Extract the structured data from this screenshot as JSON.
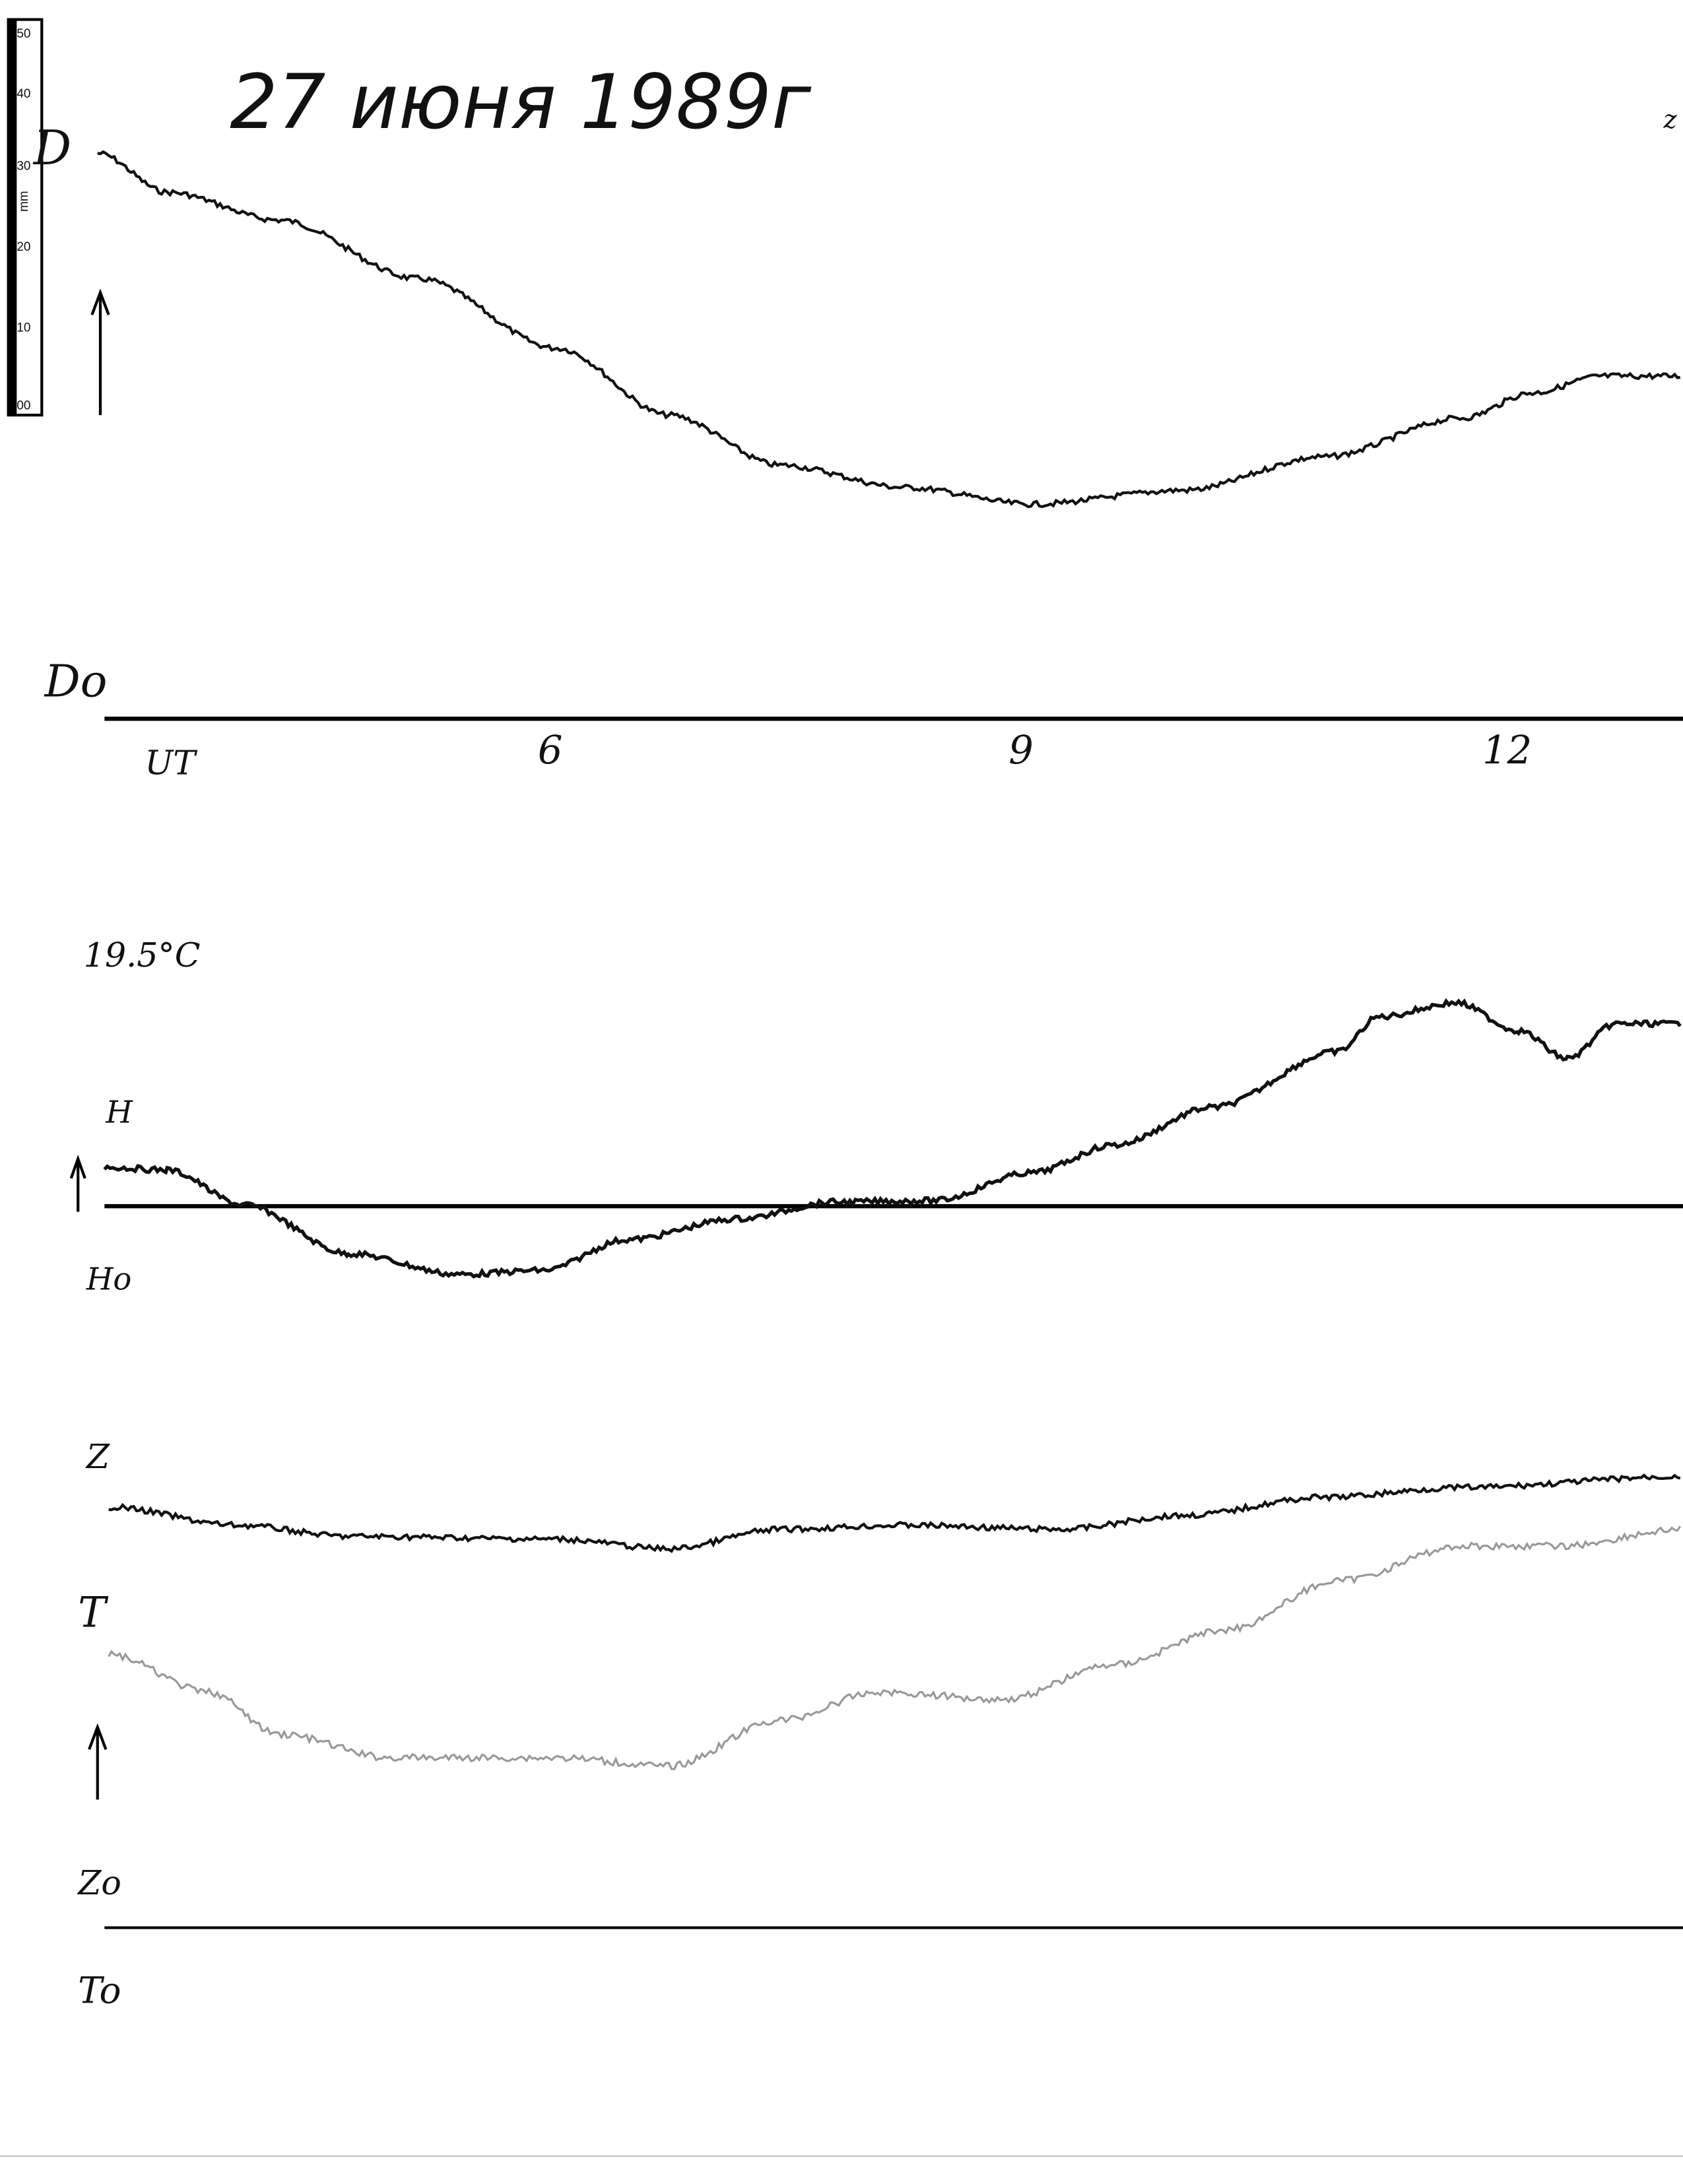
{
  "header": {
    "title": "27 июня 1989г",
    "corner_mark": "z"
  },
  "ruler": {
    "unit": "mm",
    "ticks": [
      "50",
      "40",
      "30",
      "20",
      "10",
      "00"
    ]
  },
  "panels": [
    {
      "label": "D",
      "baseline_label": "Do"
    },
    {
      "label": "H",
      "baseline_label": "Ho",
      "temperature": "19.5°C"
    },
    {
      "label": "Z",
      "second_label": "T",
      "baseline_label": "Zo",
      "second_baseline_label": "To"
    }
  ],
  "time_axis": {
    "unit": "UT",
    "hours": [
      "6",
      "9",
      "12"
    ]
  }
}
